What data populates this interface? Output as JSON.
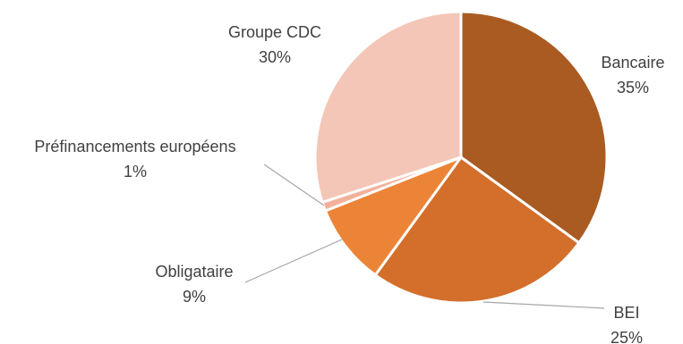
{
  "chart_data": {
    "type": "pie",
    "slices": [
      {
        "label": "Bancaire",
        "value": 35,
        "display_value": "35%",
        "color": "#A95B22"
      },
      {
        "label": "BEI",
        "value": 25,
        "display_value": "25%",
        "color": "#D36F2B"
      },
      {
        "label": "Obligataire",
        "value": 9,
        "display_value": "9%",
        "color": "#EC8437"
      },
      {
        "label": "Préfinancements européens",
        "value": 1,
        "display_value": "1%",
        "color": "#F3B19A"
      },
      {
        "label": "Groupe CDC",
        "value": 30,
        "display_value": "30%",
        "color": "#F4C6B8"
      }
    ],
    "start_angle_deg": 0,
    "direction": "clockwise",
    "legend": "none"
  }
}
